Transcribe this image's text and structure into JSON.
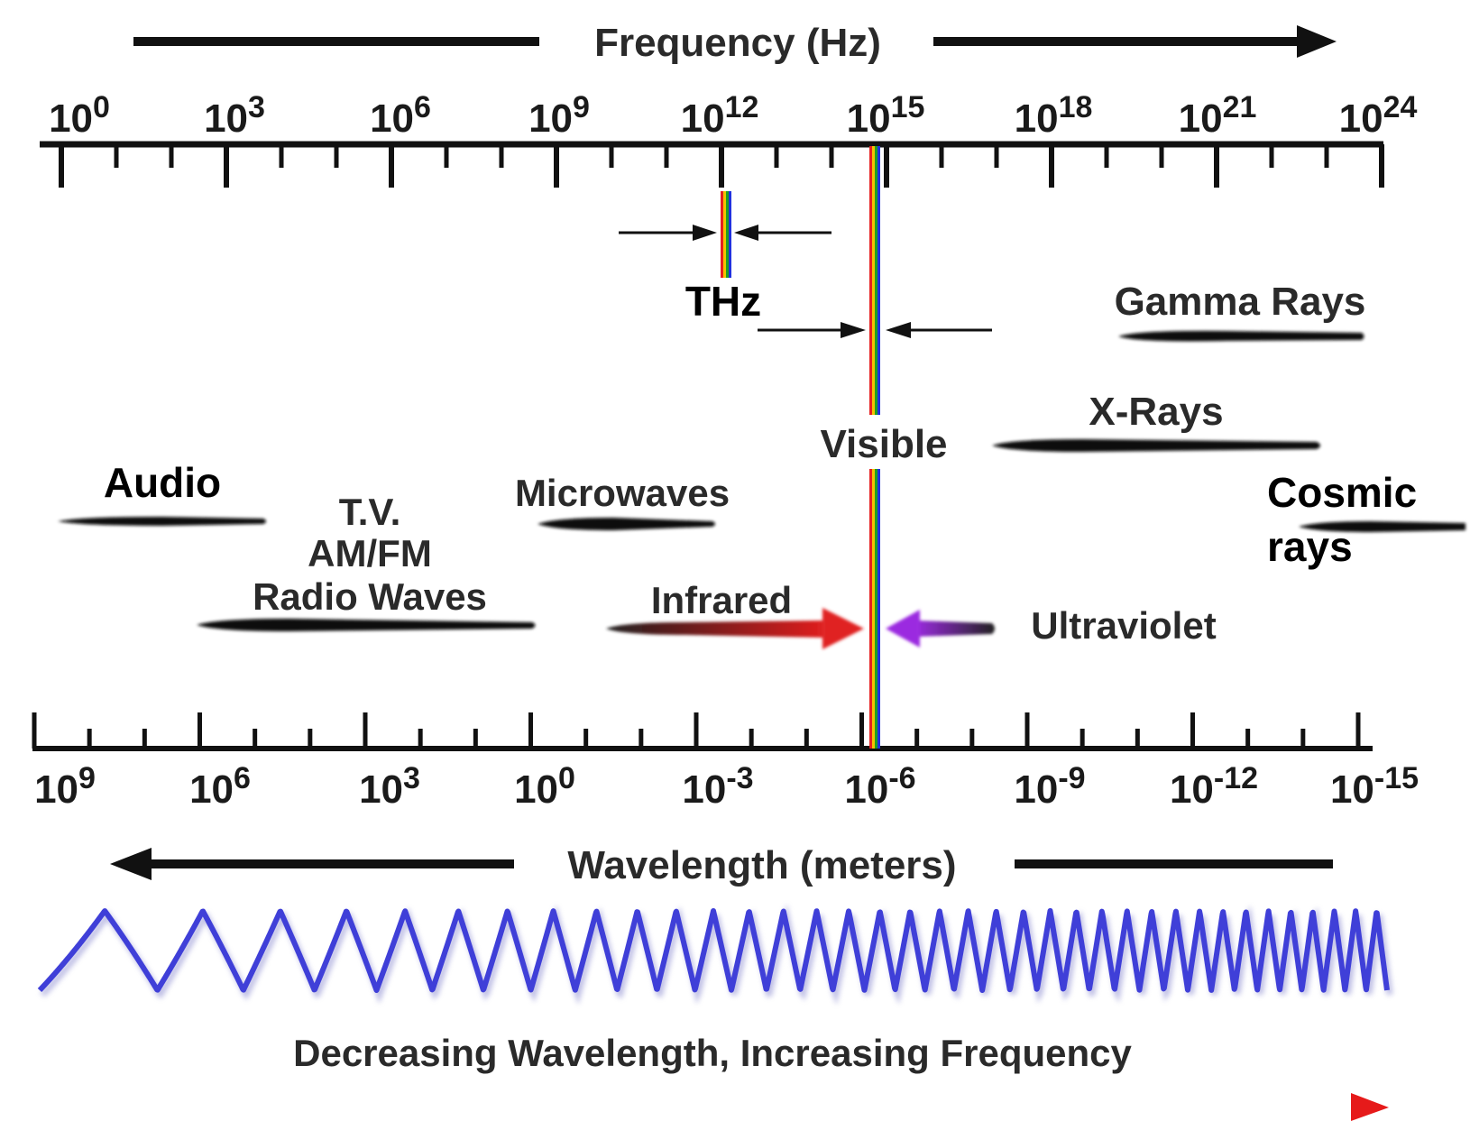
{
  "frequency_axis": {
    "title": "Frequency (Hz)",
    "ticks": [
      {
        "base": "10",
        "exp": "0"
      },
      {
        "base": "10",
        "exp": "3"
      },
      {
        "base": "10",
        "exp": "6"
      },
      {
        "base": "10",
        "exp": "9"
      },
      {
        "base": "10",
        "exp": "12"
      },
      {
        "base": "10",
        "exp": "15"
      },
      {
        "base": "10",
        "exp": "18"
      },
      {
        "base": "10",
        "exp": "21"
      },
      {
        "base": "10",
        "exp": "24"
      }
    ]
  },
  "wavelength_axis": {
    "title": "Wavelength (meters)",
    "ticks": [
      {
        "base": "10",
        "exp": "9"
      },
      {
        "base": "10",
        "exp": "6"
      },
      {
        "base": "10",
        "exp": "3"
      },
      {
        "base": "10",
        "exp": "0"
      },
      {
        "base": "10",
        "exp": "-3"
      },
      {
        "base": "10",
        "exp": "-6"
      },
      {
        "base": "10",
        "exp": "-9"
      },
      {
        "base": "10",
        "exp": "-12"
      },
      {
        "base": "10",
        "exp": "-15"
      }
    ]
  },
  "bands": {
    "thz": "THz",
    "gamma": "Gamma Rays",
    "xrays": "X-Rays",
    "visible": "Visible",
    "audio": "Audio",
    "tv": "T.V.",
    "amfm": "AM/FM",
    "radio": "Radio Waves",
    "microwaves": "Microwaves",
    "infrared": "Infrared",
    "ultraviolet": "Ultraviolet",
    "cosmic_line1": "Cosmic",
    "cosmic_line2": "rays"
  },
  "footer": "Decreasing Wavelength, Increasing Frequency",
  "colors": {
    "axis": "#111111",
    "wave": "#3f3fd8",
    "footer_arrow": "#e61a1a",
    "infrared_arrow": "#e02020",
    "ultraviolet_arrow": "#9b2be0"
  }
}
